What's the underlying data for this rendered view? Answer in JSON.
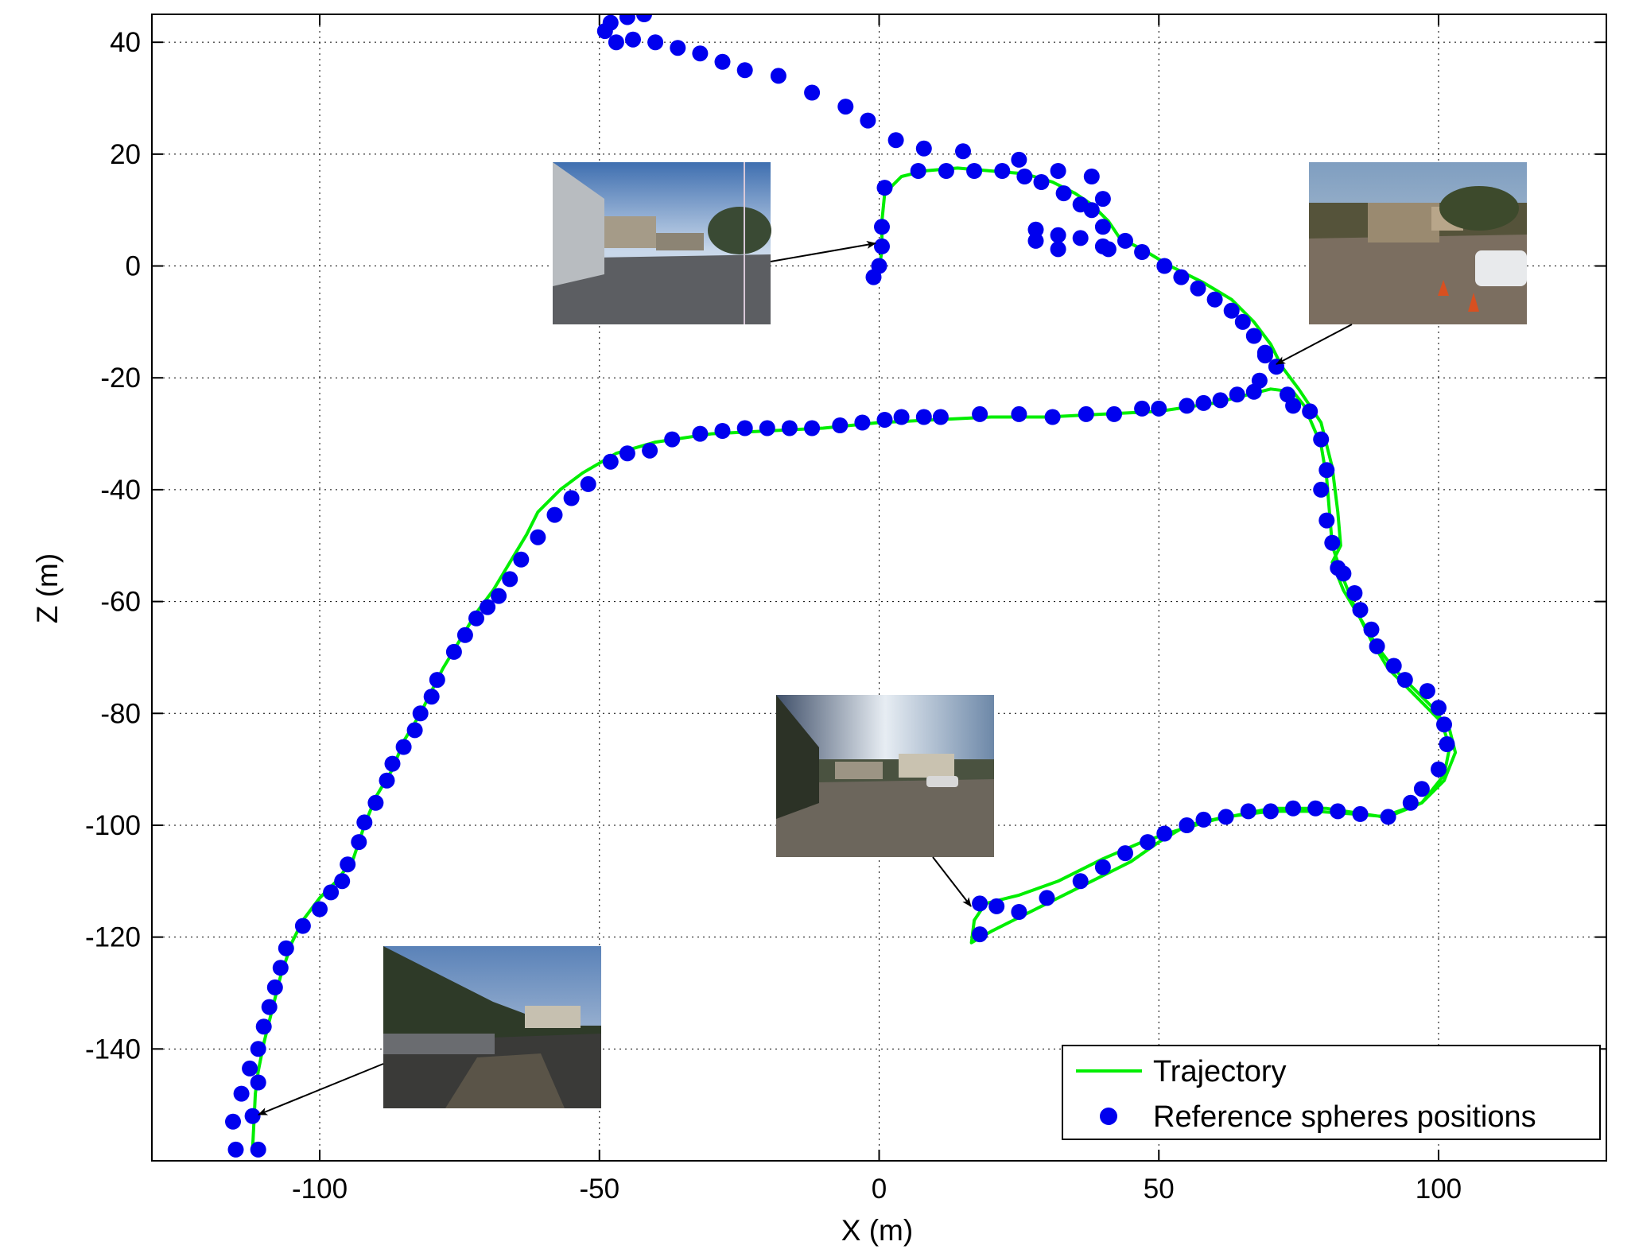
{
  "chart_data": {
    "type": "line",
    "xlabel": "X (m)",
    "ylabel": "Z (m)",
    "xlim": [
      -130,
      130
    ],
    "ylim": [
      -160,
      45
    ],
    "xticks": [
      -100,
      -50,
      0,
      50,
      100
    ],
    "yticks": [
      40,
      20,
      0,
      -20,
      -40,
      -60,
      -80,
      -100,
      -120,
      -140
    ],
    "grid": true,
    "legend_position": "bottom-right",
    "colors": {
      "trajectory": "#00ee00",
      "reference": "#0000ee"
    },
    "series": [
      {
        "name": "Trajectory",
        "style": "line",
        "points": [
          [
            -112,
            -158
          ],
          [
            -111.5,
            -148
          ],
          [
            -111,
            -144
          ],
          [
            -110,
            -139
          ],
          [
            -108.5,
            -133
          ],
          [
            -107,
            -127
          ],
          [
            -105,
            -121
          ],
          [
            -103,
            -117
          ],
          [
            -100,
            -113
          ],
          [
            -97,
            -110
          ],
          [
            -94,
            -106
          ],
          [
            -92,
            -100
          ],
          [
            -90,
            -95
          ],
          [
            -87,
            -90
          ],
          [
            -85,
            -85
          ],
          [
            -82,
            -80
          ],
          [
            -80,
            -76
          ],
          [
            -78,
            -72
          ],
          [
            -75,
            -67
          ],
          [
            -72,
            -62
          ],
          [
            -69,
            -58
          ],
          [
            -66,
            -53
          ],
          [
            -63,
            -48
          ],
          [
            -61,
            -44
          ],
          [
            -57,
            -40
          ],
          [
            -53,
            -37
          ],
          [
            -47,
            -33.5
          ],
          [
            -40,
            -31.5
          ],
          [
            -30,
            -30
          ],
          [
            -20,
            -29.5
          ],
          [
            -10,
            -29
          ],
          [
            0,
            -28
          ],
          [
            10,
            -27.5
          ],
          [
            20,
            -27
          ],
          [
            30,
            -27
          ],
          [
            40,
            -26.5
          ],
          [
            50,
            -26
          ],
          [
            60,
            -24.5
          ],
          [
            66,
            -23
          ],
          [
            70,
            -22
          ],
          [
            74,
            -22.5
          ],
          [
            76,
            -25
          ],
          [
            79,
            -32
          ],
          [
            80,
            -38
          ],
          [
            80.5,
            -44
          ],
          [
            81,
            -50
          ],
          [
            83,
            -56
          ],
          [
            85,
            -61
          ],
          [
            88,
            -67
          ],
          [
            91,
            -72
          ],
          [
            95,
            -76
          ],
          [
            99,
            -80
          ],
          [
            102,
            -83
          ],
          [
            103,
            -87
          ],
          [
            101,
            -92
          ],
          [
            97,
            -96
          ],
          [
            91,
            -98.5
          ],
          [
            85,
            -98
          ],
          [
            78,
            -97.5
          ],
          [
            70,
            -97.5
          ],
          [
            62,
            -98.5
          ],
          [
            55,
            -100
          ],
          [
            50,
            -103
          ],
          [
            45,
            -106.5
          ],
          [
            38,
            -110
          ],
          [
            30,
            -114
          ],
          [
            24,
            -117
          ],
          [
            20,
            -119
          ],
          [
            16.5,
            -121
          ],
          [
            17,
            -117
          ],
          [
            19,
            -114
          ],
          [
            25,
            -112.5
          ],
          [
            32,
            -110
          ],
          [
            40,
            -106
          ],
          [
            47,
            -103
          ],
          [
            53,
            -101
          ],
          [
            60,
            -99
          ],
          [
            70,
            -97
          ],
          [
            80,
            -97
          ],
          [
            90,
            -98.5
          ],
          [
            97,
            -96
          ],
          [
            101,
            -91
          ],
          [
            102,
            -86
          ],
          [
            100,
            -80
          ],
          [
            96,
            -76
          ],
          [
            92,
            -72
          ],
          [
            89,
            -68
          ],
          [
            86,
            -63
          ],
          [
            83,
            -58
          ],
          [
            81,
            -53
          ],
          [
            82.5,
            -50
          ],
          [
            82,
            -44
          ],
          [
            81,
            -36
          ],
          [
            79,
            -28
          ],
          [
            75,
            -22
          ],
          [
            72,
            -18
          ],
          [
            70,
            -14
          ],
          [
            67,
            -10
          ],
          [
            63,
            -6
          ],
          [
            58,
            -3
          ],
          [
            52,
            0
          ],
          [
            47,
            3
          ],
          [
            43,
            5
          ],
          [
            41,
            8
          ],
          [
            38,
            11
          ],
          [
            35,
            13
          ],
          [
            31,
            15
          ],
          [
            26,
            16.5
          ],
          [
            20,
            17
          ],
          [
            14,
            17.5
          ],
          [
            8,
            17
          ],
          [
            4,
            16
          ],
          [
            1,
            13
          ],
          [
            0.5,
            8
          ],
          [
            0.5,
            3
          ],
          [
            0,
            -1
          ],
          [
            -0.5,
            -2
          ]
        ]
      },
      {
        "name": "Reference spheres positions",
        "style": "markers",
        "points": [
          [
            -115,
            -158
          ],
          [
            -111,
            -158
          ],
          [
            -115.5,
            -153
          ],
          [
            -114,
            -148
          ],
          [
            -112,
            -152
          ],
          [
            -112.5,
            -143.5
          ],
          [
            -111,
            -146
          ],
          [
            -111,
            -140
          ],
          [
            -110,
            -136
          ],
          [
            -109,
            -132.5
          ],
          [
            -108,
            -129
          ],
          [
            -107,
            -125.5
          ],
          [
            -106,
            -122
          ],
          [
            -103,
            -118
          ],
          [
            -100,
            -115
          ],
          [
            -98,
            -112
          ],
          [
            -96,
            -110
          ],
          [
            -95,
            -107
          ],
          [
            -93,
            -103
          ],
          [
            -92,
            -99.5
          ],
          [
            -90,
            -96
          ],
          [
            -88,
            -92
          ],
          [
            -87,
            -89
          ],
          [
            -85,
            -86
          ],
          [
            -83,
            -83
          ],
          [
            -82,
            -80
          ],
          [
            -80,
            -77
          ],
          [
            -79,
            -74
          ],
          [
            -76,
            -69
          ],
          [
            -74,
            -66
          ],
          [
            -72,
            -63
          ],
          [
            -70,
            -61
          ],
          [
            -68,
            -59
          ],
          [
            -66,
            -56
          ],
          [
            -64,
            -52.5
          ],
          [
            -61,
            -48.5
          ],
          [
            -58,
            -44.5
          ],
          [
            -55,
            -41.5
          ],
          [
            -52,
            -39
          ],
          [
            -48,
            -35
          ],
          [
            -45,
            -33.5
          ],
          [
            -41,
            -33
          ],
          [
            -37,
            -31
          ],
          [
            -32,
            -30
          ],
          [
            -28,
            -29.5
          ],
          [
            -24,
            -29
          ],
          [
            -20,
            -29
          ],
          [
            -16,
            -29
          ],
          [
            -12,
            -29
          ],
          [
            -7,
            -28.5
          ],
          [
            -3,
            -28
          ],
          [
            1,
            -27.5
          ],
          [
            4,
            -27
          ],
          [
            8,
            -27
          ],
          [
            11,
            -27
          ],
          [
            18,
            -26.5
          ],
          [
            25,
            -26.5
          ],
          [
            31,
            -27
          ],
          [
            37,
            -26.5
          ],
          [
            42,
            -26.5
          ],
          [
            47,
            -25.5
          ],
          [
            50,
            -25.5
          ],
          [
            55,
            -25
          ],
          [
            58,
            -24.5
          ],
          [
            61,
            -24
          ],
          [
            64,
            -23
          ],
          [
            67,
            -22.5
          ],
          [
            68,
            -20.5
          ],
          [
            69,
            -16
          ],
          [
            71,
            -18
          ],
          [
            73,
            -23
          ],
          [
            74,
            -25
          ],
          [
            77,
            -26
          ],
          [
            79,
            -31
          ],
          [
            80,
            -36.5
          ],
          [
            79,
            -40
          ],
          [
            80,
            -45.5
          ],
          [
            81,
            -49.5
          ],
          [
            82,
            -54
          ],
          [
            83,
            -55
          ],
          [
            85,
            -58.5
          ],
          [
            86,
            -61.5
          ],
          [
            88,
            -65
          ],
          [
            89,
            -68
          ],
          [
            92,
            -71.5
          ],
          [
            94,
            -74
          ],
          [
            98,
            -76
          ],
          [
            100,
            -79
          ],
          [
            101,
            -82
          ],
          [
            101.5,
            -85.5
          ],
          [
            100,
            -90
          ],
          [
            97,
            -93.5
          ],
          [
            95,
            -96
          ],
          [
            91,
            -98.5
          ],
          [
            86,
            -98
          ],
          [
            82,
            -97.5
          ],
          [
            78,
            -97
          ],
          [
            74,
            -97
          ],
          [
            70,
            -97.5
          ],
          [
            66,
            -97.5
          ],
          [
            62,
            -98.5
          ],
          [
            58,
            -99
          ],
          [
            55,
            -100
          ],
          [
            51,
            -101.5
          ],
          [
            48,
            -103
          ],
          [
            44,
            -105
          ],
          [
            40,
            -107.5
          ],
          [
            36,
            -110
          ],
          [
            30,
            -113
          ],
          [
            25,
            -115.5
          ],
          [
            21,
            -114.5
          ],
          [
            18,
            -114
          ],
          [
            18,
            -119.5
          ],
          [
            71,
            -18
          ],
          [
            69,
            -15.5
          ],
          [
            67,
            -12.5
          ],
          [
            65,
            -10
          ],
          [
            63,
            -8
          ],
          [
            60,
            -6
          ],
          [
            57,
            -4
          ],
          [
            54,
            -2
          ],
          [
            51,
            0
          ],
          [
            47,
            2.5
          ],
          [
            44,
            4.5
          ],
          [
            41,
            3
          ],
          [
            40,
            7
          ],
          [
            38,
            10
          ],
          [
            36,
            11
          ],
          [
            33,
            13
          ],
          [
            29,
            15
          ],
          [
            26,
            16
          ],
          [
            22,
            17
          ],
          [
            17,
            17
          ],
          [
            12,
            17
          ],
          [
            7,
            17
          ],
          [
            1,
            14
          ],
          [
            0.5,
            7
          ],
          [
            0.5,
            3.5
          ],
          [
            0,
            0
          ],
          [
            -1,
            -2
          ],
          [
            28,
            6.5
          ],
          [
            32,
            5.5
          ],
          [
            36,
            5
          ],
          [
            40,
            3.5
          ],
          [
            32,
            3
          ],
          [
            28,
            4.5
          ],
          [
            40,
            12
          ],
          [
            38,
            16
          ],
          [
            32,
            17
          ],
          [
            25,
            19
          ],
          [
            15,
            20.5
          ],
          [
            8,
            21
          ],
          [
            3,
            22.5
          ],
          [
            -2,
            26
          ],
          [
            -6,
            28.5
          ],
          [
            -12,
            31
          ],
          [
            -18,
            34
          ],
          [
            -24,
            35
          ],
          [
            -28,
            36.5
          ],
          [
            -32,
            38
          ],
          [
            -36,
            39
          ],
          [
            -40,
            40
          ],
          [
            -44,
            40.5
          ],
          [
            -47,
            40
          ],
          [
            -49,
            42
          ],
          [
            -48,
            43.5
          ],
          [
            -45,
            44.5
          ],
          [
            -42,
            45
          ]
        ]
      }
    ],
    "inset_images": [
      {
        "name": "photo-building-wall",
        "points_to": [
          0,
          4
        ]
      },
      {
        "name": "photo-office-parking",
        "points_to": [
          70,
          -18
        ]
      },
      {
        "name": "photo-parking-lot",
        "points_to": [
          18,
          -114
        ]
      },
      {
        "name": "photo-tree-lined-road",
        "points_to": [
          -111,
          -150
        ]
      }
    ]
  }
}
